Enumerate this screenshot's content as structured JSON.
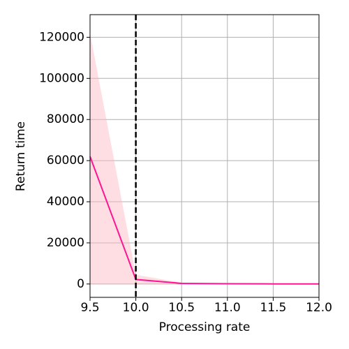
{
  "chart_data": {
    "type": "line",
    "xlabel": "Processing rate",
    "ylabel": "Return time",
    "x": [
      9.5,
      10.0,
      10.5,
      11.0,
      11.5,
      12.0
    ],
    "series": [
      {
        "color": "#ff1493",
        "values": [
          62000,
          2200,
          300,
          100,
          50,
          20
        ],
        "band_color": "#ffb6c1",
        "upper": [
          122000,
          4500,
          600,
          200,
          100,
          40
        ],
        "lower": [
          0,
          0,
          0,
          0,
          0,
          0
        ]
      }
    ],
    "vline": 10.0,
    "xlim": [
      9.5,
      12.0
    ],
    "xticks": [
      9.5,
      {
        "value": 10.0,
        "label": "10.0"
      },
      10.5,
      {
        "value": 11.0,
        "label": "11.0"
      },
      11.5,
      {
        "value": 12.0,
        "label": "12.0"
      }
    ],
    "ylim": [
      -6500,
      131000
    ],
    "yticks": [
      0,
      20000,
      40000,
      60000,
      80000,
      100000,
      120000
    ],
    "grid": true
  }
}
